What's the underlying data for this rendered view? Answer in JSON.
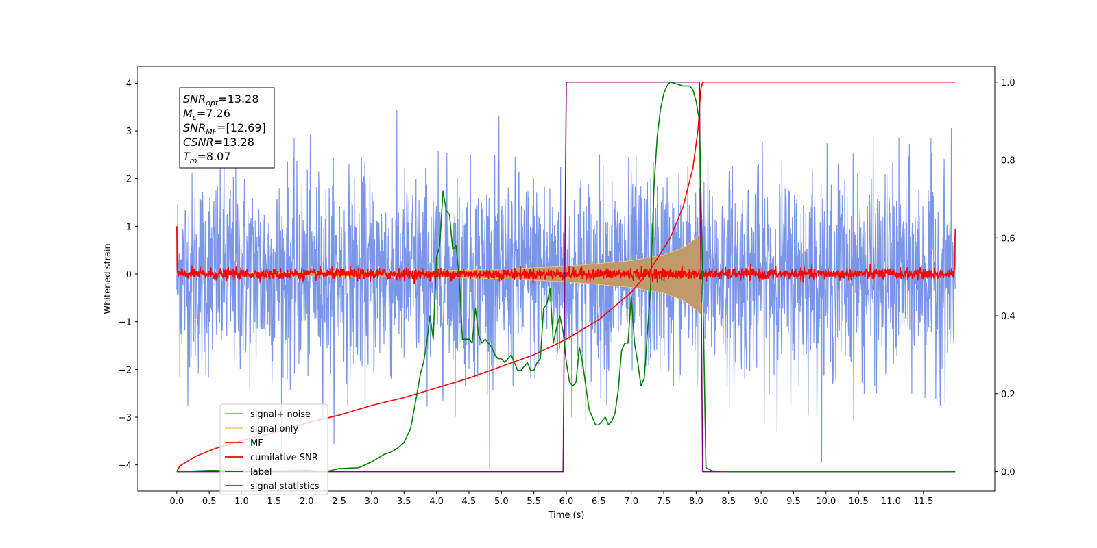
{
  "chart_data": {
    "type": "line",
    "xlabel": "Time (s)",
    "ylabel": "Whitened strain",
    "xlim": [
      -0.6,
      12.6
    ],
    "ylim": [
      -4.55,
      4.35
    ],
    "ylim_right": [
      -0.05,
      1.04
    ],
    "x_ticks": [
      "0.0",
      "0.5",
      "1.0",
      "1.5",
      "2.0",
      "2.5",
      "3.0",
      "3.5",
      "4.0",
      "4.5",
      "5.0",
      "5.5",
      "6.0",
      "6.5",
      "7.0",
      "7.5",
      "8.0",
      "8.5",
      "9.0",
      "9.5",
      "10.0",
      "10.5",
      "11.0",
      "11.5"
    ],
    "y_ticks_left": [
      "4",
      "3",
      "2",
      "1",
      "0",
      "−1",
      "−2",
      "−3",
      "−4"
    ],
    "y_ticks_right": [
      "1.0",
      "0.8",
      "0.6",
      "0.4",
      "0.2",
      "0.0"
    ],
    "grid": false,
    "legend_position": "lower-left",
    "annotations": [
      {
        "main": "SNR",
        "sub": "opt",
        "rest": "=13.28"
      },
      {
        "main": "M",
        "sub": "c",
        "rest": "=7.26"
      },
      {
        "main": "SNR",
        "sub": "MF",
        "rest": "=[12.69]"
      },
      {
        "main": "CSNR",
        "sub": "",
        "rest": "=13.28"
      },
      {
        "main": "T",
        "sub": "m",
        "rest": "=8.07"
      }
    ],
    "series": [
      {
        "name": "signal+ noise",
        "color": "#7b96e8",
        "axis": "left",
        "style": "gaussian-noise",
        "x_range": [
          0.0,
          11.99
        ],
        "sigma": 1.0,
        "clip": [
          -4.1,
          4.0
        ]
      },
      {
        "name": "signal only",
        "color": "#f5c97f",
        "axis": "left",
        "style": "chirp-envelope",
        "x_range": [
          0.0,
          8.07
        ],
        "envelope": {
          "x": [
            0,
            2,
            4,
            5,
            6,
            7,
            7.5,
            7.8,
            8.0,
            8.07
          ],
          "y": [
            0.02,
            0.04,
            0.07,
            0.1,
            0.16,
            0.28,
            0.4,
            0.55,
            0.75,
            0.85
          ]
        }
      },
      {
        "name": "MF",
        "color": "#ff0000",
        "axis": "left",
        "style": "noise-around-zero",
        "x_range": [
          0.0,
          11.99
        ],
        "sigma": 0.06,
        "edges": {
          "start": 1.0,
          "end": 0.95
        }
      },
      {
        "name": "cumilative SNR",
        "color": "#ff0000",
        "axis": "right",
        "x": [
          0.0,
          0.05,
          0.3,
          0.6,
          1.0,
          1.5,
          2.0,
          2.5,
          3.0,
          3.5,
          4.0,
          4.5,
          5.0,
          5.5,
          6.0,
          6.5,
          7.0,
          7.3,
          7.6,
          7.8,
          7.95,
          8.03,
          8.07,
          8.1,
          11.99
        ],
        "y": [
          0.0,
          0.015,
          0.04,
          0.06,
          0.08,
          0.1,
          0.125,
          0.145,
          0.17,
          0.19,
          0.215,
          0.24,
          0.27,
          0.3,
          0.34,
          0.39,
          0.46,
          0.52,
          0.6,
          0.68,
          0.78,
          0.88,
          0.98,
          1.0,
          1.0
        ]
      },
      {
        "name": "label",
        "color": "#800080",
        "axis": "right",
        "x": [
          0.0,
          5.95,
          6.0,
          8.05,
          8.1,
          11.99
        ],
        "y": [
          0.0,
          0.0,
          1.0,
          1.0,
          0.0,
          0.0
        ]
      },
      {
        "name": "signal statistics",
        "color": "#008000",
        "axis": "right",
        "x": [
          0.0,
          0.5,
          1.0,
          1.5,
          2.0,
          2.3,
          2.5,
          2.8,
          3.0,
          3.1,
          3.2,
          3.3,
          3.4,
          3.5,
          3.6,
          3.7,
          3.75,
          3.8,
          3.85,
          3.9,
          3.95,
          4.0,
          4.05,
          4.1,
          4.15,
          4.2,
          4.25,
          4.3,
          4.35,
          4.4,
          4.45,
          4.5,
          4.55,
          4.6,
          4.65,
          4.7,
          4.75,
          4.8,
          4.85,
          4.9,
          4.95,
          5.0,
          5.05,
          5.1,
          5.15,
          5.2,
          5.25,
          5.3,
          5.35,
          5.4,
          5.45,
          5.5,
          5.55,
          5.6,
          5.65,
          5.7,
          5.75,
          5.8,
          5.85,
          5.9,
          5.95,
          6.0,
          6.05,
          6.1,
          6.15,
          6.2,
          6.25,
          6.3,
          6.35,
          6.4,
          6.45,
          6.5,
          6.55,
          6.6,
          6.65,
          6.7,
          6.75,
          6.8,
          6.85,
          6.9,
          6.95,
          7.0,
          7.05,
          7.1,
          7.15,
          7.2,
          7.25,
          7.3,
          7.35,
          7.4,
          7.45,
          7.5,
          7.55,
          7.6,
          7.7,
          7.8,
          7.9,
          7.95,
          8.0,
          8.05,
          8.1,
          8.15,
          8.25,
          8.5,
          9.0,
          10.0,
          11.0,
          11.99
        ],
        "y": [
          0.0,
          0.003,
          0.002,
          0.002,
          0.003,
          0.0,
          0.008,
          0.01,
          0.025,
          0.035,
          0.045,
          0.05,
          0.06,
          0.075,
          0.11,
          0.2,
          0.25,
          0.28,
          0.33,
          0.4,
          0.34,
          0.55,
          0.58,
          0.72,
          0.67,
          0.66,
          0.57,
          0.58,
          0.5,
          0.34,
          0.34,
          0.34,
          0.33,
          0.42,
          0.35,
          0.33,
          0.34,
          0.33,
          0.32,
          0.3,
          0.29,
          0.29,
          0.28,
          0.29,
          0.3,
          0.28,
          0.26,
          0.26,
          0.27,
          0.28,
          0.26,
          0.26,
          0.28,
          0.29,
          0.42,
          0.43,
          0.47,
          0.33,
          0.37,
          0.4,
          0.36,
          0.28,
          0.23,
          0.22,
          0.23,
          0.32,
          0.28,
          0.22,
          0.16,
          0.14,
          0.12,
          0.12,
          0.13,
          0.14,
          0.12,
          0.13,
          0.15,
          0.21,
          0.31,
          0.33,
          0.33,
          0.45,
          0.33,
          0.28,
          0.22,
          0.24,
          0.36,
          0.48,
          0.73,
          0.86,
          0.93,
          0.97,
          0.99,
          1.0,
          0.995,
          0.99,
          0.99,
          0.98,
          0.95,
          0.9,
          0.5,
          0.01,
          0.002,
          0.0,
          0.0,
          0.0,
          0.0,
          0.0
        ]
      }
    ]
  }
}
